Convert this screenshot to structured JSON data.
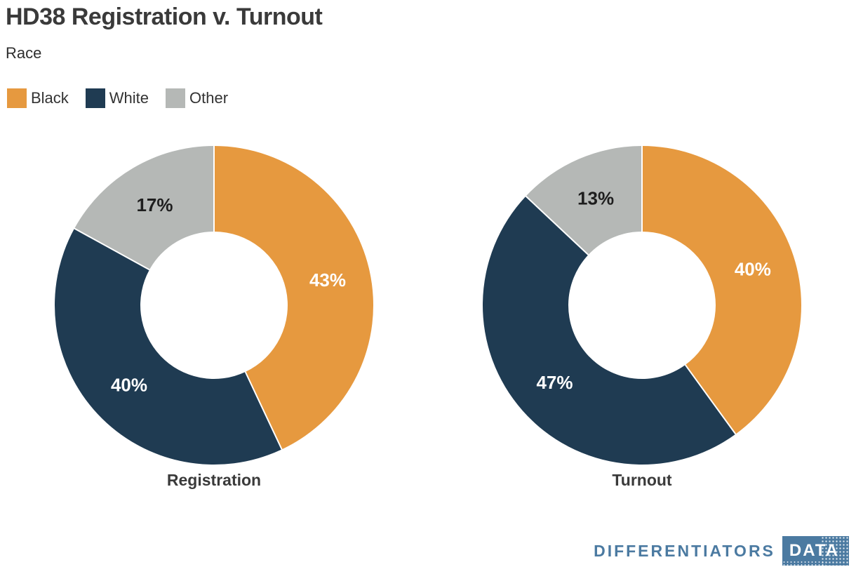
{
  "header": {
    "title": "HD38 Registration v. Turnout",
    "subtitle": "Race"
  },
  "legend": {
    "position": "top-left",
    "items": [
      {
        "label": "Black",
        "color": "#e6993f"
      },
      {
        "label": "White",
        "color": "#1f3b52"
      },
      {
        "label": "Other",
        "color": "#b5b8b6"
      }
    ]
  },
  "chart_data": [
    {
      "type": "pie",
      "subtype": "donut",
      "title": "Registration",
      "categories": [
        "Black",
        "White",
        "Other"
      ],
      "values": [
        43,
        40,
        17
      ],
      "unit": "%",
      "colors": [
        "#e6993f",
        "#1f3b52",
        "#b5b8b6"
      ],
      "label_colors": [
        "#ffffff",
        "#ffffff",
        "#1e1e1e"
      ],
      "start_angle_deg": 0,
      "direction": "clockwise"
    },
    {
      "type": "pie",
      "subtype": "donut",
      "title": "Turnout",
      "categories": [
        "Black",
        "White",
        "Other"
      ],
      "values": [
        40,
        47,
        13
      ],
      "unit": "%",
      "colors": [
        "#e6993f",
        "#1f3b52",
        "#b5b8b6"
      ],
      "label_colors": [
        "#ffffff",
        "#ffffff",
        "#1e1e1e"
      ],
      "start_angle_deg": 0,
      "direction": "clockwise"
    }
  ],
  "footer": {
    "brand_wordmark": "DIFFERENTIATORS",
    "brand_badge": "DATA",
    "brand_color": "#4b7aa1"
  }
}
